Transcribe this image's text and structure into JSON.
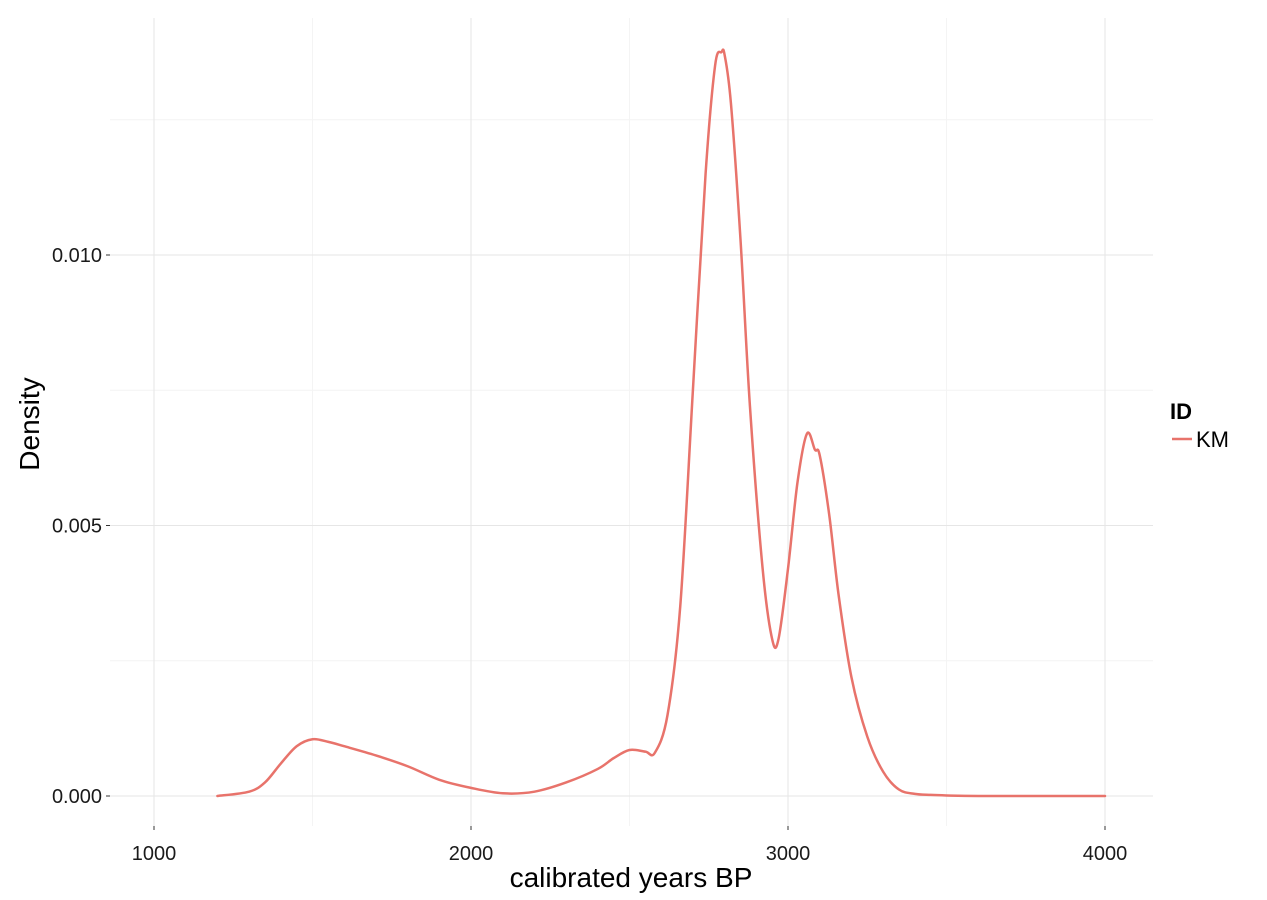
{
  "chart_data": {
    "type": "line",
    "title": "",
    "xlabel": "calibrated years BP",
    "ylabel": "Density",
    "xlim": [
      1000,
      4000
    ],
    "ylim": [
      0.0,
      0.015
    ],
    "x_ticks": [
      1000,
      2000,
      3000,
      4000
    ],
    "x_tick_labels": [
      "1000",
      "2000",
      "3000",
      "4000"
    ],
    "y_ticks": [
      0.0,
      0.005,
      0.01
    ],
    "y_tick_labels": [
      "0.000",
      "0.005",
      "0.010"
    ],
    "grid": true,
    "legend": {
      "title": "ID",
      "position": "right"
    },
    "series": [
      {
        "name": "KM",
        "color": "#E8736B",
        "x": [
          1200,
          1300,
          1350,
          1400,
          1450,
          1500,
          1550,
          1600,
          1700,
          1800,
          1900,
          2000,
          2100,
          2200,
          2300,
          2400,
          2450,
          2500,
          2550,
          2580,
          2620,
          2660,
          2700,
          2740,
          2770,
          2790,
          2800,
          2820,
          2850,
          2880,
          2920,
          2950,
          2970,
          3000,
          3030,
          3060,
          3085,
          3100,
          3130,
          3160,
          3200,
          3250,
          3300,
          3350,
          3400,
          3450,
          3500,
          3600,
          3800,
          4000
        ],
        "y": [
          0.0,
          8e-05,
          0.00025,
          0.0006,
          0.00092,
          0.00105,
          0.001,
          0.00092,
          0.00075,
          0.00055,
          0.0003,
          0.00015,
          5e-05,
          8e-05,
          0.00025,
          0.0005,
          0.0007,
          0.00085,
          0.00082,
          0.0008,
          0.0015,
          0.0035,
          0.0075,
          0.0115,
          0.0135,
          0.01375,
          0.0137,
          0.0128,
          0.0103,
          0.0072,
          0.0042,
          0.0029,
          0.0029,
          0.0042,
          0.0058,
          0.0067,
          0.0064,
          0.0063,
          0.0052,
          0.0037,
          0.0022,
          0.0011,
          0.00045,
          0.00012,
          4e-05,
          2e-05,
          1e-05,
          0.0,
          0.0,
          0.0
        ]
      }
    ]
  }
}
